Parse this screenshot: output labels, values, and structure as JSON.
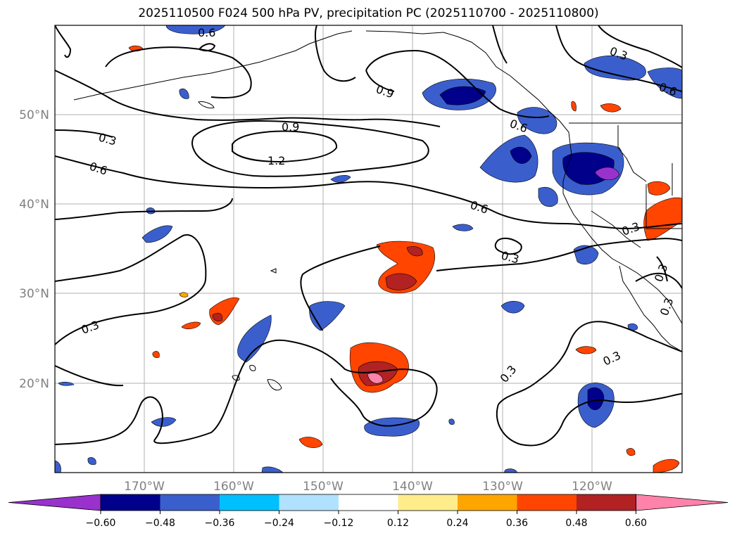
{
  "title": "2025110500 F024 500 hPa PV, precipitation PC (2025110700 - 2025110800)",
  "lat_labels": [
    "50°N",
    "40°N",
    "30°N",
    "20°N"
  ],
  "lon_labels": [
    "170°W",
    "160°W",
    "150°W",
    "140°W",
    "130°W",
    "120°W"
  ],
  "contour_labels": [
    "0.6",
    "0.9",
    "1.2",
    "0.9",
    "0.3",
    "0.6",
    "0.3",
    "0.6",
    "0.6",
    "0.3",
    "0.3",
    "0.3",
    "0.3",
    "0.3",
    "0.3",
    "0.6",
    "0.3"
  ],
  "colorbar": {
    "ticks": [
      "−0.60",
      "−0.48",
      "−0.36",
      "−0.24",
      "−0.12",
      "0.12",
      "0.24",
      "0.36",
      "0.48",
      "0.60"
    ],
    "colors": [
      "#9932cc",
      "#00008b",
      "#3a5fcd",
      "#00bfff",
      "#b0e2ff",
      "#ffffff",
      "#ffec8b",
      "#ffa500",
      "#ff4500",
      "#b22222",
      "#ff82ab"
    ]
  }
}
